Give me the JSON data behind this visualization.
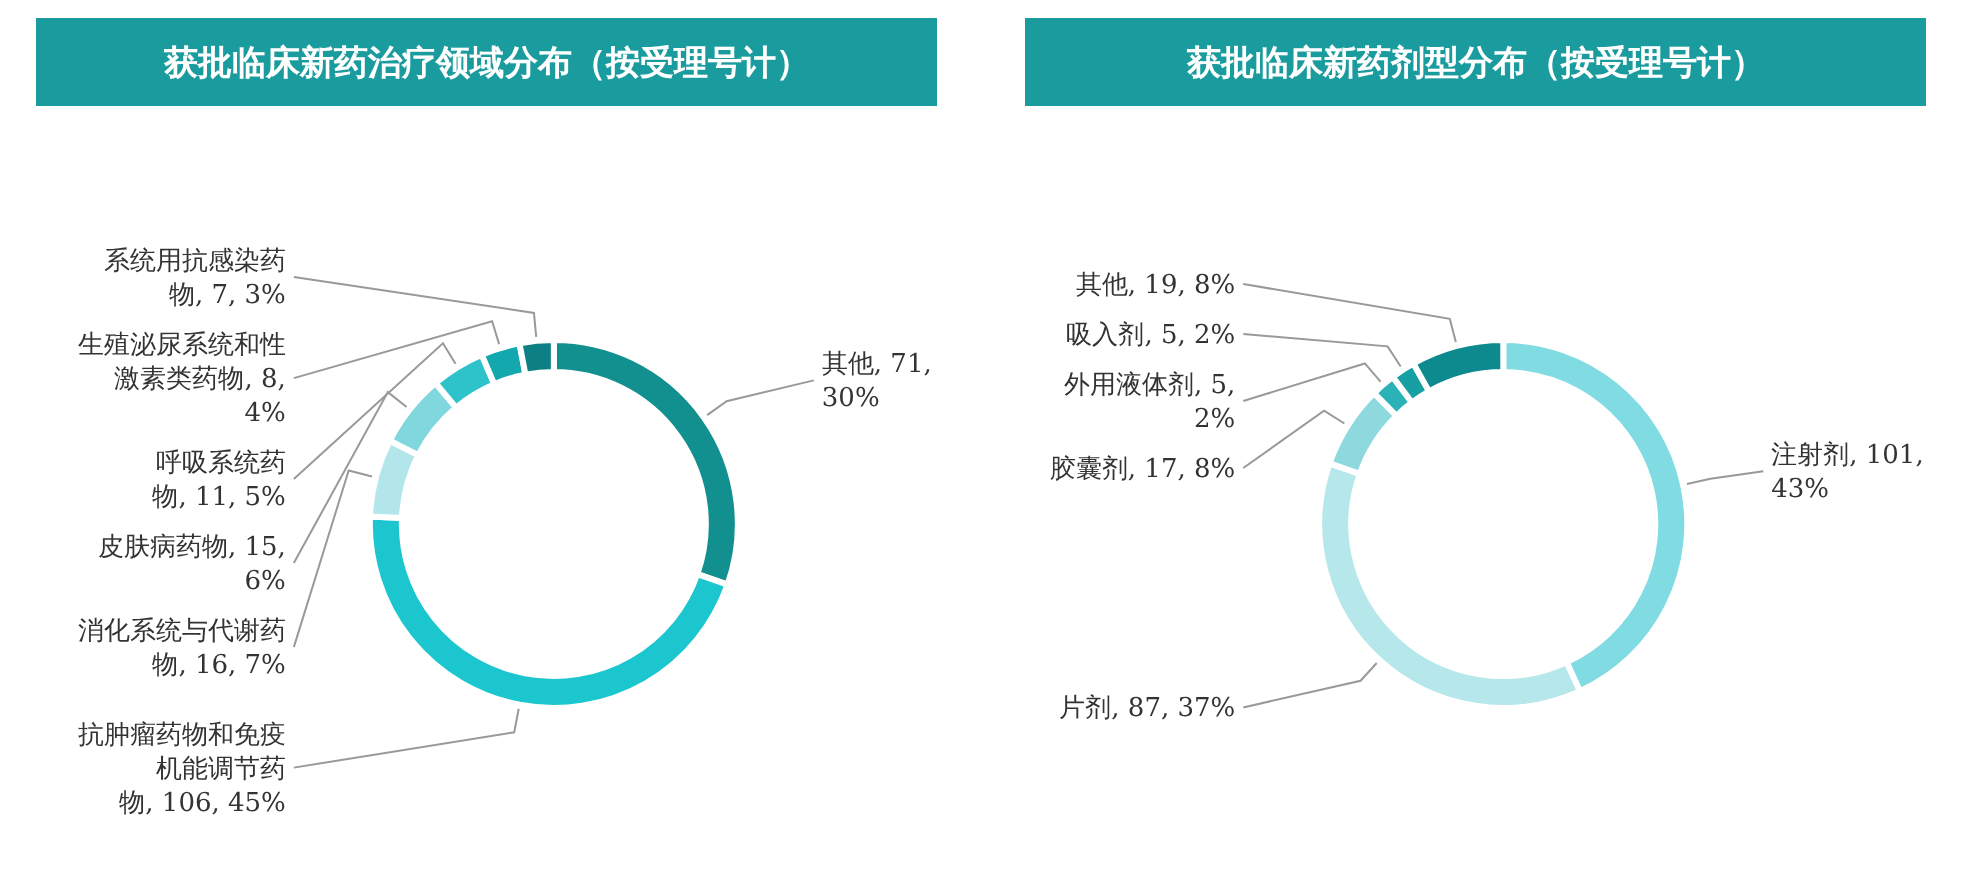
{
  "chart_data": [
    {
      "type": "donut",
      "title": "获批临床新药治疗领域分布（按受理号计）",
      "categories": [
        "其他",
        "抗肿瘤药物和免疫机能调节药物",
        "消化系统与代谢药物",
        "皮肤病药物",
        "呼吸系统药物",
        "生殖泌尿系统和性激素类药物",
        "系统用抗感染药物"
      ],
      "values": [
        71,
        106,
        16,
        15,
        11,
        8,
        7
      ],
      "value_labels": [
        "71, 30%",
        "106, 45%",
        "16, 7%",
        "15, 6%",
        "11, 5%",
        "8, 4%",
        "7, 3%"
      ],
      "colors": [
        "#12908f",
        "#1cc6cf",
        "#b3e6ea",
        "#80d8de",
        "#2ec3cb",
        "#13a8ae",
        "#0e7f83"
      ]
    },
    {
      "type": "donut",
      "title": "获批临床新药剂型分布（按受理号计）",
      "categories": [
        "注射剂",
        "片剂",
        "胶囊剂",
        "外用液体剂",
        "吸入剂",
        "其他"
      ],
      "values": [
        101,
        87,
        17,
        5,
        5,
        19
      ],
      "value_labels": [
        "101, 43%",
        "87, 37%",
        "17, 8%",
        "5, 2%",
        "5, 2%",
        "19, 8%"
      ],
      "colors": [
        "#80dbe2",
        "#b6e7eb",
        "#8ed9de",
        "#2ab2b7",
        "#17a0a4",
        "#0d8a8d"
      ]
    }
  ]
}
